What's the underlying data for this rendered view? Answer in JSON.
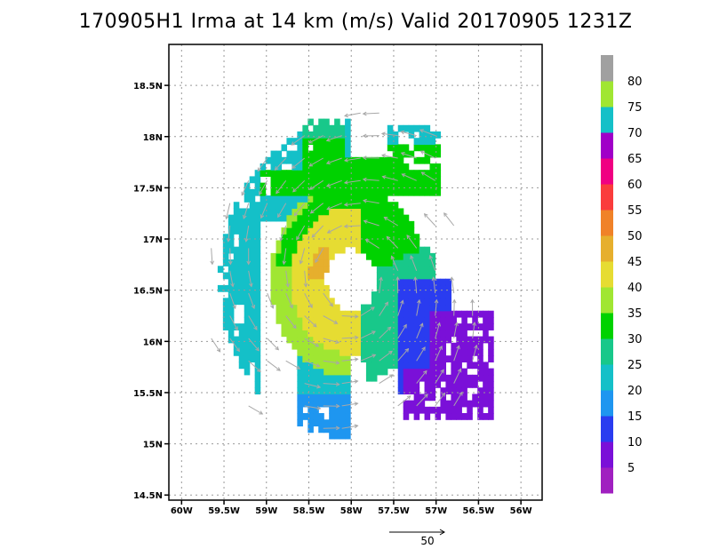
{
  "title": "170905H1 Irma at 14 km (m/s) Valid 20170905 1231Z",
  "chart_data": {
    "type": "heatmap",
    "title": "170905H1 Irma at 14 km (m/s) Valid 20170905 1231Z",
    "storm": "Irma",
    "altitude": "14 km",
    "units": "m/s",
    "valid": "20170905 1231Z",
    "xlim": [
      -60.15,
      -55.75
    ],
    "ylim": [
      14.45,
      18.9
    ],
    "x_ticks": [
      {
        "value": -60.0,
        "label": "60W"
      },
      {
        "value": -59.5,
        "label": "59.5W"
      },
      {
        "value": -59.0,
        "label": "59W"
      },
      {
        "value": -58.5,
        "label": "58.5W"
      },
      {
        "value": -58.0,
        "label": "58W"
      },
      {
        "value": -57.5,
        "label": "57.5W"
      },
      {
        "value": -57.0,
        "label": "57W"
      },
      {
        "value": -56.5,
        "label": "56.5W"
      },
      {
        "value": -56.0,
        "label": "56W"
      }
    ],
    "y_ticks": [
      {
        "value": 14.5,
        "label": "14.5N"
      },
      {
        "value": 15.0,
        "label": "15N"
      },
      {
        "value": 15.5,
        "label": "15.5N"
      },
      {
        "value": 16.0,
        "label": "16N"
      },
      {
        "value": 16.5,
        "label": "16.5N"
      },
      {
        "value": 17.0,
        "label": "17N"
      },
      {
        "value": 17.5,
        "label": "17.5N"
      },
      {
        "value": 18.0,
        "label": "18N"
      },
      {
        "value": 18.5,
        "label": "18.5N"
      }
    ],
    "grid": true,
    "colorbar": {
      "levels": [
        {
          "label": "",
          "color": "#a020c0"
        },
        {
          "label": "5",
          "color": "#7a10d8"
        },
        {
          "label": "10",
          "color": "#2a3cf0"
        },
        {
          "label": "15",
          "color": "#1e96f0"
        },
        {
          "label": "20",
          "color": "#14c0c8"
        },
        {
          "label": "25",
          "color": "#18c88a"
        },
        {
          "label": "30",
          "color": "#00d200"
        },
        {
          "label": "35",
          "color": "#a0e632"
        },
        {
          "label": "40",
          "color": "#e6dc32"
        },
        {
          "label": "45",
          "color": "#e6af2d"
        },
        {
          "label": "50",
          "color": "#f08228"
        },
        {
          "label": "55",
          "color": "#fa3c3c"
        },
        {
          "label": "60",
          "color": "#f00082"
        },
        {
          "label": "65",
          "color": "#a000c8"
        },
        {
          "label": "70",
          "color": "#14c0c8"
        },
        {
          "label": "75",
          "color": "#a0e632"
        },
        {
          "label": "80",
          "color": "#a0a0a0"
        }
      ]
    },
    "center": [
      -58.0,
      16.6
    ],
    "eye_radius_deg": 0.3,
    "annulus_outer_deg": 1.55,
    "wind_regions": [
      {
        "level": 20,
        "desc": "outer western/southwestern band"
      },
      {
        "level": 30,
        "desc": "northern and inner ring"
      },
      {
        "level": 40,
        "desc": "inner eyewall west"
      },
      {
        "level": 45,
        "desc": "peak west of eye"
      },
      {
        "level": 10,
        "desc": "southeast sector"
      },
      {
        "level": 5,
        "desc": "far southeast lobe"
      }
    ],
    "reference_vector": {
      "label": "50"
    }
  }
}
